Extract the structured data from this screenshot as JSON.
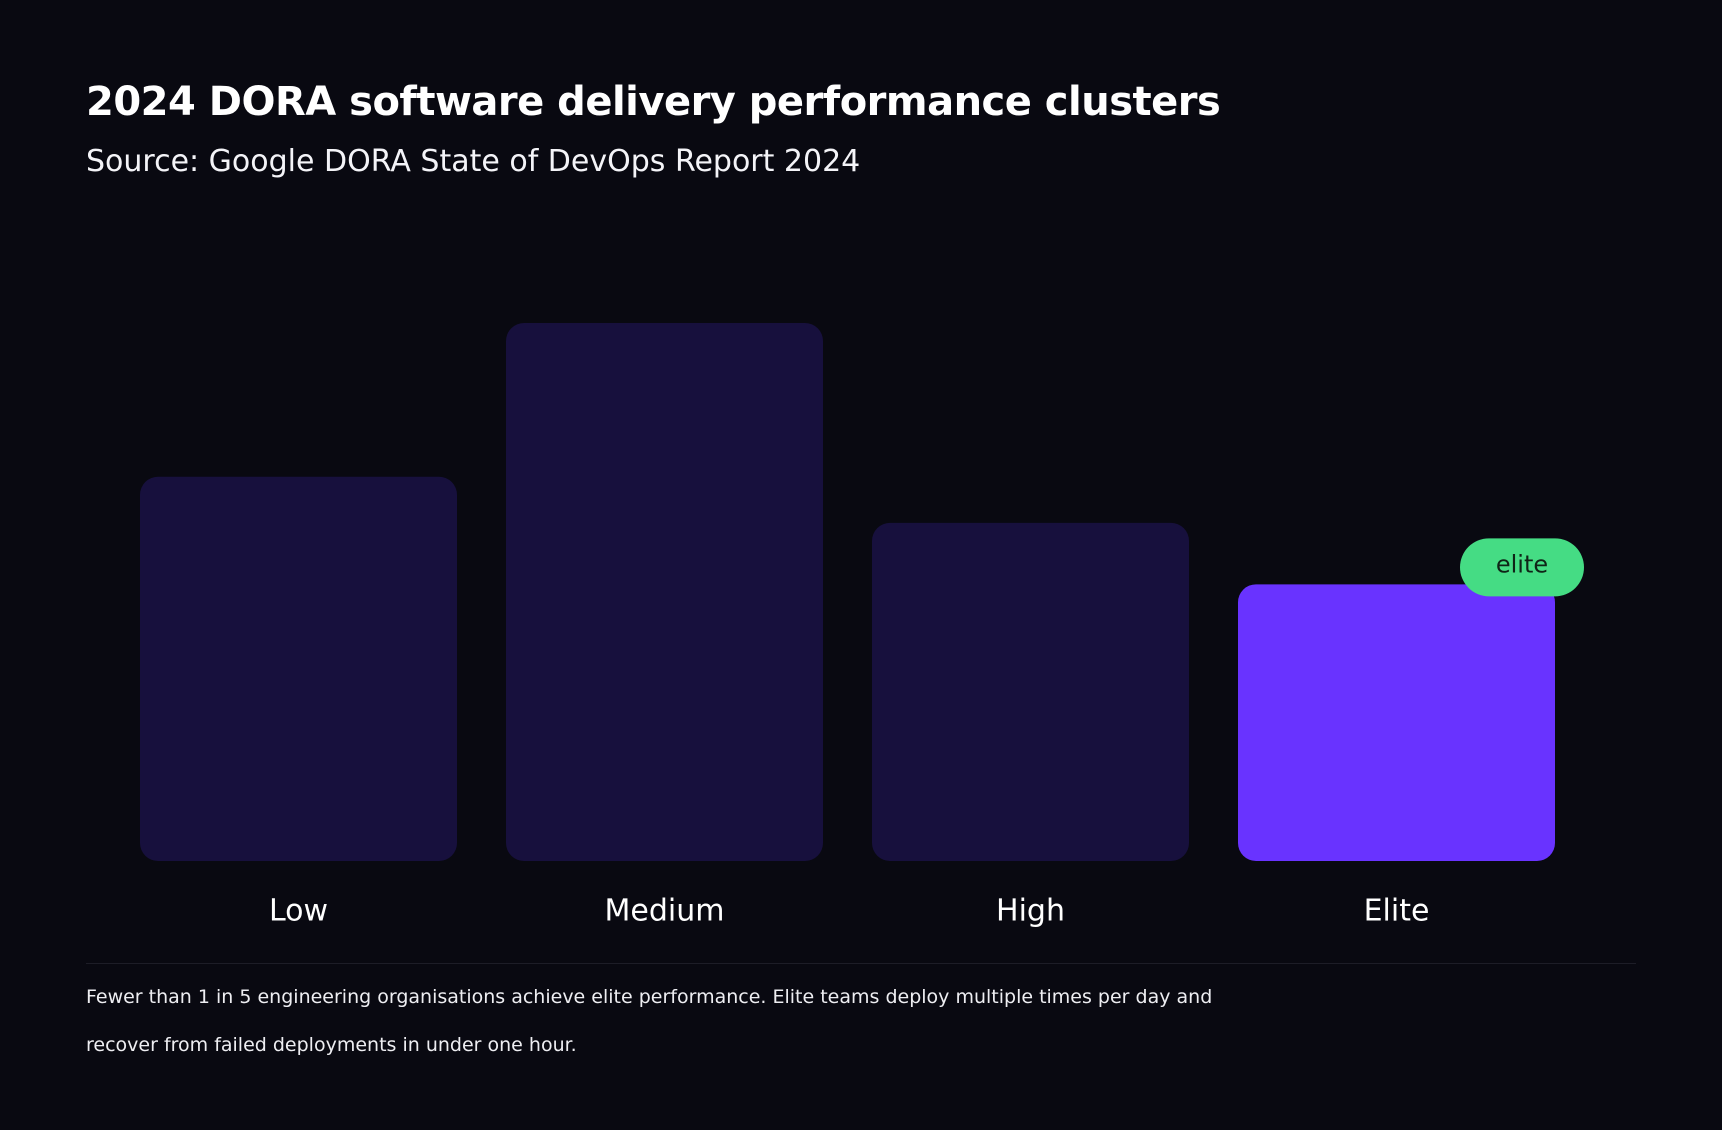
{
  "page": {
    "title": "2024 DORA software delivery performance clusters",
    "subtitle": "Source: Google DORA State of DevOps Report 2024",
    "footnote": "Fewer than 1 in 5 engineering organisations achieve elite performance. Elite teams deploy multiple times per day and recover from failed deployments in under one hour."
  },
  "chart_data": {
    "type": "bar",
    "title": "2024 DORA software delivery performance clusters",
    "subtitle": "Source: Google DORA State of DevOps Report 2024",
    "categories": [
      "Low",
      "Medium",
      "High",
      "Elite"
    ],
    "values": [
      25,
      35,
      22,
      18
    ],
    "ylim": [
      0,
      35
    ],
    "grid": false,
    "legend": "none",
    "highlight": {
      "category": "Elite",
      "label": "elite"
    },
    "colors": {
      "background": "#090911",
      "bar": "#17103d",
      "highlight_bar": "#6933ff",
      "badge": "#45dc84",
      "badge_text": "#0f2417",
      "text": "#ffffff"
    }
  }
}
